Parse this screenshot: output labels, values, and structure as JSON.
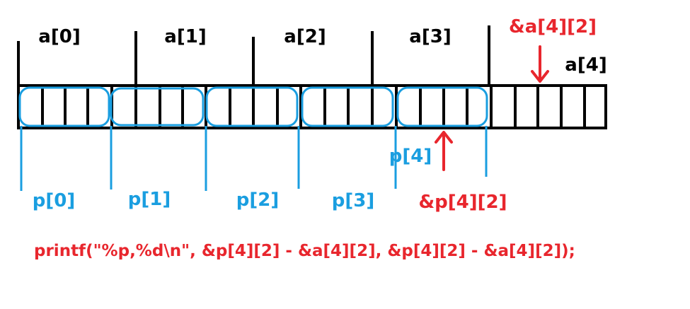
{
  "colors": {
    "black": "#000000",
    "blue": "#1a9ee0",
    "red": "#e8262d"
  },
  "labels": {
    "a0": "a[0]",
    "a1": "a[1]",
    "a2": "a[2]",
    "a3": "a[3]",
    "a4": "a[4]",
    "a42": "&a[4][2]",
    "p0": "p[0]",
    "p1": "p[1]",
    "p2": "p[2]",
    "p3": "p[3]",
    "p4": "p[4]",
    "p42": "&p[4][2]"
  },
  "code": "printf(\"%p,%d\\n\", &p[4][2] - &a[4][2], &p[4][2] - &a[4][2]);"
}
